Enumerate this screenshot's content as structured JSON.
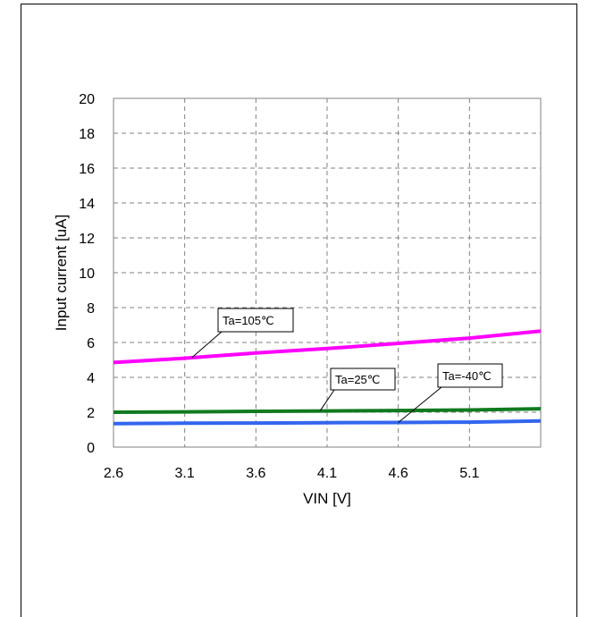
{
  "chart_data": {
    "type": "line",
    "title": "",
    "xlabel": "VIN [V]",
    "ylabel": "Input current [uA]",
    "xlim": [
      2.6,
      5.6
    ],
    "ylim": [
      0,
      20
    ],
    "xticks": [
      "2.6",
      "3.1",
      "3.6",
      "4.1",
      "4.6",
      "5.1"
    ],
    "yticks": [
      "0",
      "2",
      "4",
      "6",
      "8",
      "10",
      "12",
      "14",
      "16",
      "18",
      "20"
    ],
    "grid": true,
    "series": [
      {
        "name": "Ta=105℃",
        "color": "#ff00ff",
        "x": [
          2.6,
          3.1,
          3.6,
          4.1,
          4.6,
          5.1,
          5.6
        ],
        "y": [
          4.85,
          5.1,
          5.4,
          5.65,
          5.95,
          6.25,
          6.65
        ]
      },
      {
        "name": "Ta=25℃",
        "color": "#0f7a1e",
        "x": [
          2.6,
          3.1,
          3.6,
          4.1,
          4.6,
          5.1,
          5.6
        ],
        "y": [
          2.0,
          2.02,
          2.05,
          2.07,
          2.1,
          2.13,
          2.2
        ]
      },
      {
        "name": "Ta=-40℃",
        "color": "#3366ee",
        "x": [
          2.6,
          3.1,
          3.6,
          4.1,
          4.6,
          5.1,
          5.6
        ],
        "y": [
          1.35,
          1.37,
          1.38,
          1.4,
          1.41,
          1.43,
          1.5
        ]
      }
    ],
    "annotations": [
      {
        "text": "Ta=105℃",
        "points_to_series": 0,
        "at_x": 3.15
      },
      {
        "text": "Ta=25℃",
        "points_to_series": 1,
        "at_x": 4.05
      },
      {
        "text": "Ta=-40℃",
        "points_to_series": 2,
        "at_x": 4.6
      }
    ]
  }
}
